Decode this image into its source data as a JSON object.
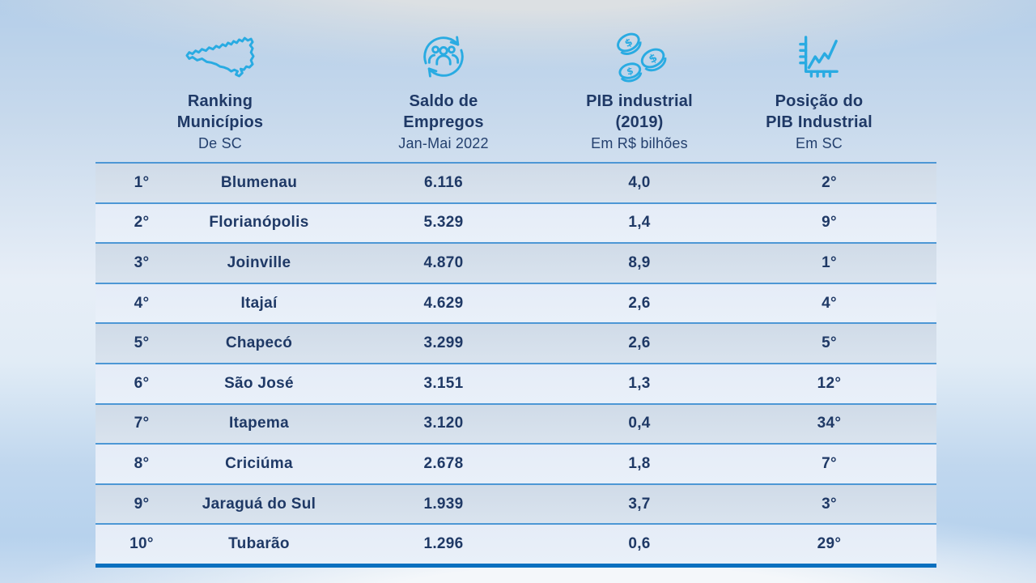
{
  "colors": {
    "icon_accent": "#29abe2",
    "text_navy": "#1f3966",
    "row_separator": "#4d97d5",
    "table_bottom_border": "#0b70bf",
    "row_odd_band": "#d3deea",
    "row_even_band": "#e7eef8"
  },
  "table": {
    "headers": [
      {
        "line1": "Ranking",
        "line2": "Municípios",
        "subtitle": "De SC",
        "icon": "sc-state-map-icon"
      },
      {
        "line1": "Saldo de",
        "line2": "Empregos",
        "subtitle": "Jan-Mai 2022",
        "icon": "people-sync-icon"
      },
      {
        "line1": "PIB industrial",
        "line2": "(2019)",
        "subtitle": "Em R$ bilhões",
        "icon": "coins-icon"
      },
      {
        "line1": "Posição do",
        "line2": "PIB Industrial",
        "subtitle": "Em SC",
        "icon": "line-chart-icon"
      }
    ],
    "rows": [
      {
        "rank": "1°",
        "municipality": "Blumenau",
        "saldo_empregos": "6.116",
        "pib_industrial": "4,0",
        "posicao_pib": "2°"
      },
      {
        "rank": "2°",
        "municipality": "Florianópolis",
        "saldo_empregos": "5.329",
        "pib_industrial": "1,4",
        "posicao_pib": "9°"
      },
      {
        "rank": "3°",
        "municipality": "Joinville",
        "saldo_empregos": "4.870",
        "pib_industrial": "8,9",
        "posicao_pib": "1°"
      },
      {
        "rank": "4°",
        "municipality": "Itajaí",
        "saldo_empregos": "4.629",
        "pib_industrial": "2,6",
        "posicao_pib": "4°"
      },
      {
        "rank": "5°",
        "municipality": "Chapecó",
        "saldo_empregos": "3.299",
        "pib_industrial": "2,6",
        "posicao_pib": "5°"
      },
      {
        "rank": "6°",
        "municipality": "São José",
        "saldo_empregos": "3.151",
        "pib_industrial": "1,3",
        "posicao_pib": "12°"
      },
      {
        "rank": "7°",
        "municipality": "Itapema",
        "saldo_empregos": "3.120",
        "pib_industrial": "0,4",
        "posicao_pib": "34°"
      },
      {
        "rank": "8°",
        "municipality": "Criciúma",
        "saldo_empregos": "2.678",
        "pib_industrial": "1,8",
        "posicao_pib": "7°"
      },
      {
        "rank": "9°",
        "municipality": "Jaraguá do Sul",
        "saldo_empregos": "1.939",
        "pib_industrial": "3,7",
        "posicao_pib": "3°"
      },
      {
        "rank": "10°",
        "municipality": "Tubarão",
        "saldo_empregos": "1.296",
        "pib_industrial": "0,6",
        "posicao_pib": "29°"
      }
    ]
  },
  "chart_data": {
    "type": "table",
    "columns": [
      {
        "header": "Ranking Municípios",
        "subheader": "De SC"
      },
      {
        "header": "Município",
        "subheader": ""
      },
      {
        "header": "Saldo de Empregos",
        "subheader": "Jan-Mai 2022"
      },
      {
        "header": "PIB industrial (2019)",
        "subheader": "Em R$ bilhões"
      },
      {
        "header": "Posição do PIB Industrial",
        "subheader": "Em SC"
      }
    ],
    "rows": [
      [
        "1°",
        "Blumenau",
        "6.116",
        "4,0",
        "2°"
      ],
      [
        "2°",
        "Florianópolis",
        "5.329",
        "1,4",
        "9°"
      ],
      [
        "3°",
        "Joinville",
        "4.870",
        "8,9",
        "1°"
      ],
      [
        "4°",
        "Itajaí",
        "4.629",
        "2,6",
        "4°"
      ],
      [
        "5°",
        "Chapecó",
        "3.299",
        "2,6",
        "5°"
      ],
      [
        "6°",
        "São José",
        "3.151",
        "1,3",
        "12°"
      ],
      [
        "7°",
        "Itapema",
        "3.120",
        "0,4",
        "34°"
      ],
      [
        "8°",
        "Criciúma",
        "2.678",
        "1,8",
        "7°"
      ],
      [
        "9°",
        "Jaraguá do Sul",
        "1.939",
        "3,7",
        "3°"
      ],
      [
        "10°",
        "Tubarão",
        "1.296",
        "0,6",
        "29°"
      ]
    ]
  }
}
